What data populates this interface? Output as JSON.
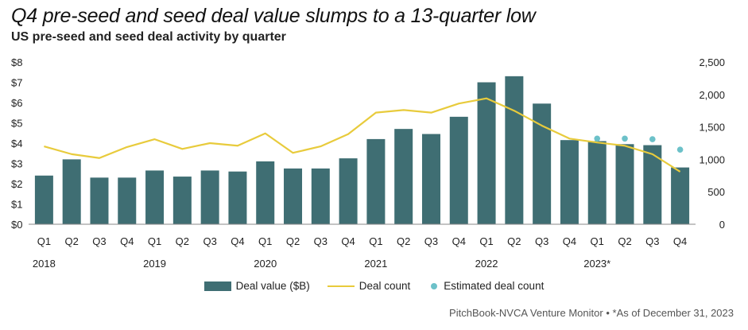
{
  "header": {
    "title": "Q4 pre-seed and seed deal value slumps to a 13-quarter low",
    "subtitle": "US pre-seed and seed deal activity by quarter"
  },
  "source": {
    "text": "PitchBook-NVCA Venture Monitor",
    "separator": "•",
    "note": "*As of December 31, 2023"
  },
  "colors": {
    "bar": "#3f6e73",
    "line": "#e8cb3c",
    "dot": "#6cc1c9",
    "axis": "#888888"
  },
  "chart_data": {
    "type": "bar",
    "categories": [
      "Q1",
      "Q2",
      "Q3",
      "Q4",
      "Q1",
      "Q2",
      "Q3",
      "Q4",
      "Q1",
      "Q2",
      "Q3",
      "Q4",
      "Q1",
      "Q2",
      "Q3",
      "Q4",
      "Q1",
      "Q2",
      "Q3",
      "Q4",
      "Q1",
      "Q2",
      "Q3",
      "Q4"
    ],
    "year_groups": [
      {
        "label": "2018",
        "start": 0
      },
      {
        "label": "2019",
        "start": 4
      },
      {
        "label": "2020",
        "start": 8
      },
      {
        "label": "2021",
        "start": 12
      },
      {
        "label": "2022",
        "start": 16
      },
      {
        "label": "2023*",
        "start": 20
      }
    ],
    "left_axis": {
      "ylim": [
        0,
        8
      ],
      "ticks": [
        0,
        1,
        2,
        3,
        4,
        5,
        6,
        7,
        8
      ],
      "tick_labels": [
        "$0",
        "$1",
        "$2",
        "$3",
        "$4",
        "$5",
        "$6",
        "$7",
        "$8"
      ]
    },
    "right_axis": {
      "ylim": [
        0,
        2500
      ],
      "ticks": [
        0,
        500,
        1000,
        1500,
        2000,
        2500
      ],
      "tick_labels": [
        "0",
        "500",
        "1,000",
        "1,500",
        "2,000",
        "2,500"
      ]
    },
    "series": [
      {
        "name": "Deal value ($B)",
        "type": "bar",
        "axis": "left",
        "values": [
          2.4,
          3.2,
          2.3,
          2.3,
          2.65,
          2.35,
          2.65,
          2.6,
          3.1,
          2.75,
          2.75,
          3.25,
          4.2,
          4.7,
          4.45,
          5.3,
          7.0,
          7.3,
          5.95,
          4.15,
          4.1,
          3.95,
          3.9,
          2.8
        ]
      },
      {
        "name": "Deal count",
        "type": "line",
        "axis": "right",
        "values": [
          1200,
          1080,
          1020,
          1190,
          1310,
          1160,
          1250,
          1210,
          1400,
          1100,
          1200,
          1390,
          1720,
          1760,
          1720,
          1860,
          1940,
          1750,
          1520,
          1320,
          1260,
          1210,
          1080,
          810
        ]
      },
      {
        "name": "Estimated deal count",
        "type": "scatter",
        "axis": "right",
        "values": [
          null,
          null,
          null,
          null,
          null,
          null,
          null,
          null,
          null,
          null,
          null,
          null,
          null,
          null,
          null,
          null,
          null,
          null,
          null,
          null,
          1320,
          1320,
          1310,
          1150
        ]
      }
    ]
  }
}
